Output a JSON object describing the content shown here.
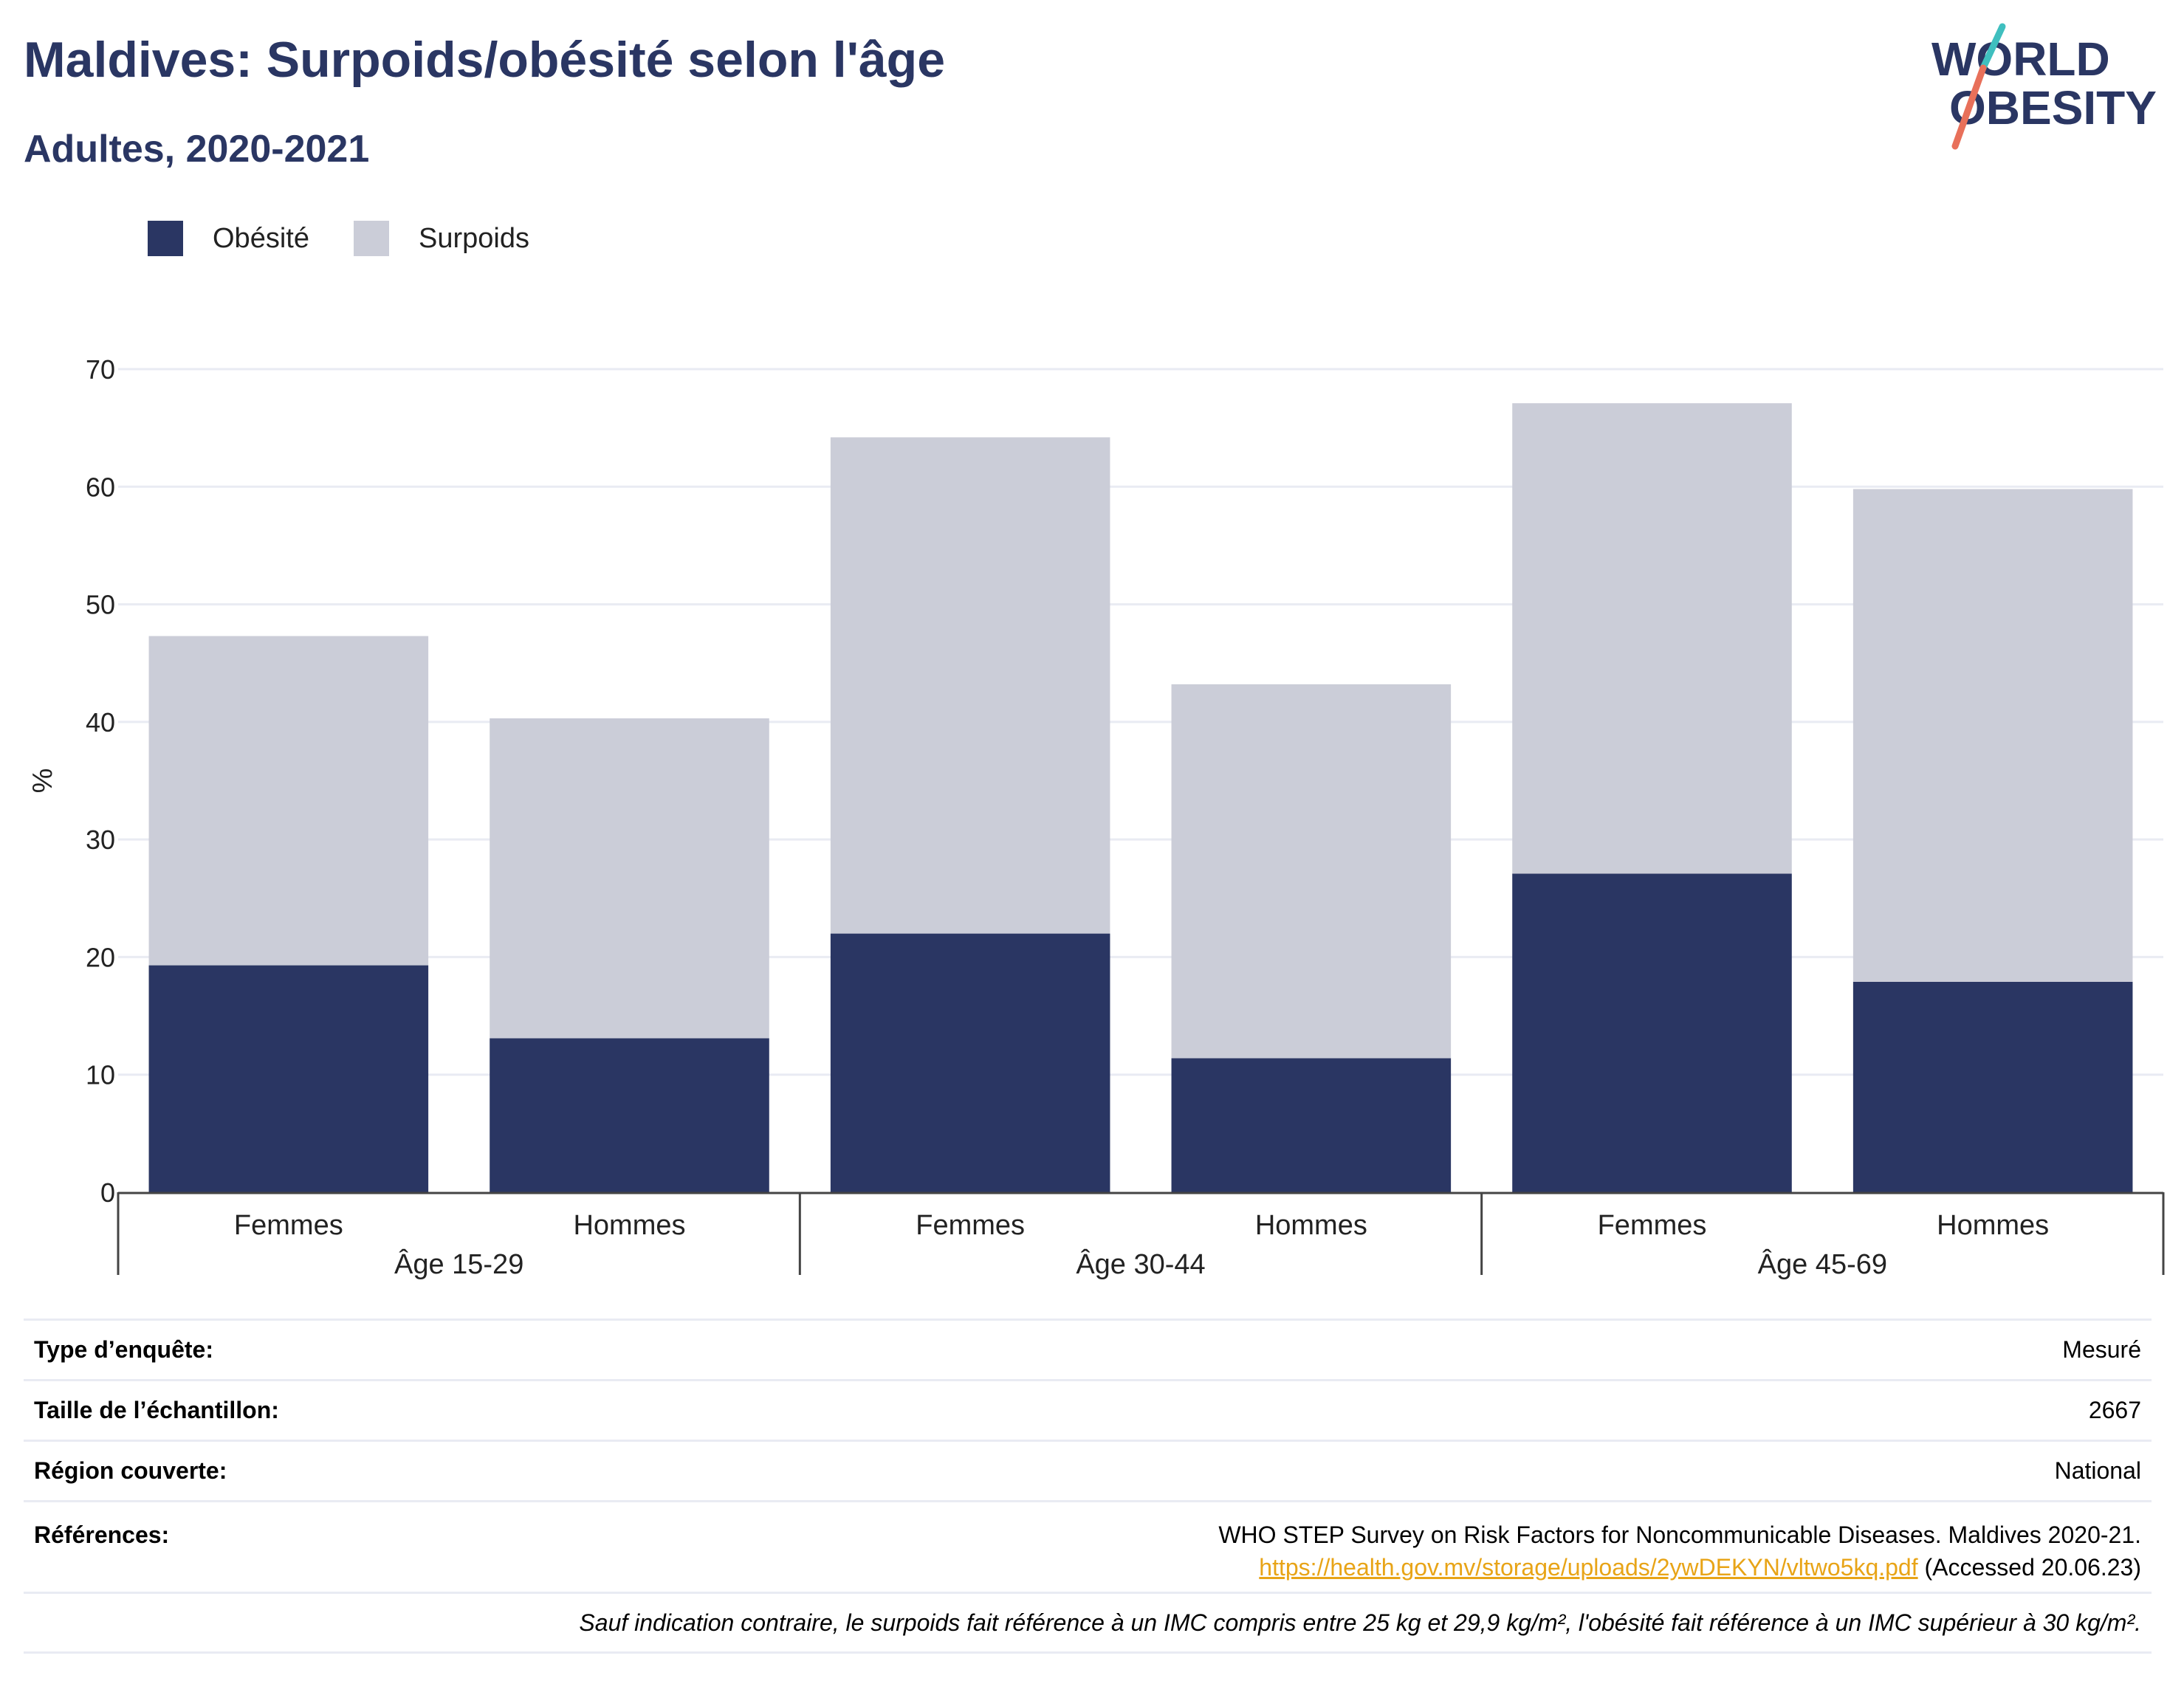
{
  "title": "Maldives: Surpoids/obésité selon l'âge",
  "subtitle": "Adultes, 2020-2021",
  "logo": {
    "line1": "WORLD",
    "line2": "OBESITY"
  },
  "colors": {
    "obesite": "#2a3663",
    "surpoids": "#cbcdd8",
    "title": "#2a3663",
    "link": "#e8a417",
    "grid": "#e9ebf3",
    "logo_teal": "#3fbfbf",
    "logo_red": "#e8705a"
  },
  "legend": {
    "obesite": "Obésité",
    "surpoids": "Surpoids"
  },
  "chart_data": {
    "type": "bar",
    "stacked": true,
    "ylabel": "%",
    "ylim": [
      0,
      70
    ],
    "yticks": [
      0,
      10,
      20,
      30,
      40,
      50,
      60,
      70
    ],
    "grid": true,
    "legend_position": "top-left",
    "groups": [
      {
        "label": "Âge 15-29",
        "categories": [
          "Femmes",
          "Hommes"
        ]
      },
      {
        "label": "Âge 30-44",
        "categories": [
          "Femmes",
          "Hommes"
        ]
      },
      {
        "label": "Âge 45-69",
        "categories": [
          "Femmes",
          "Hommes"
        ]
      }
    ],
    "categories": [
      "Femmes",
      "Hommes",
      "Femmes",
      "Hommes",
      "Femmes",
      "Hommes"
    ],
    "series": [
      {
        "name": "Obésité",
        "values": [
          19.3,
          13.1,
          22.0,
          11.4,
          27.1,
          17.9
        ]
      },
      {
        "name": "Surpoids",
        "values": [
          28.0,
          27.2,
          42.2,
          31.8,
          40.0,
          41.9
        ]
      }
    ]
  },
  "info": {
    "type_label": "Type d’enquête:",
    "type_value": "Mesuré",
    "sample_label": "Taille de l’échantillon:",
    "sample_value": "2667",
    "region_label": "Région couverte:",
    "region_value": "National",
    "refs_label": "Références:",
    "refs_line1": "WHO STEP Survey on Risk Factors for Noncommunicable Diseases. Maldives 2020-21.",
    "refs_link": "https://health.gov.mv/storage/uploads/2ywDEKYN/vltwo5kq.pdf",
    "refs_accessed": " (Accessed 20.06.23)",
    "footnote": "Sauf indication contraire, le surpoids fait référence à un IMC compris entre 25 kg et 29,9 kg/m², l'obésité fait référence à un IMC supérieur à 30 kg/m²."
  }
}
